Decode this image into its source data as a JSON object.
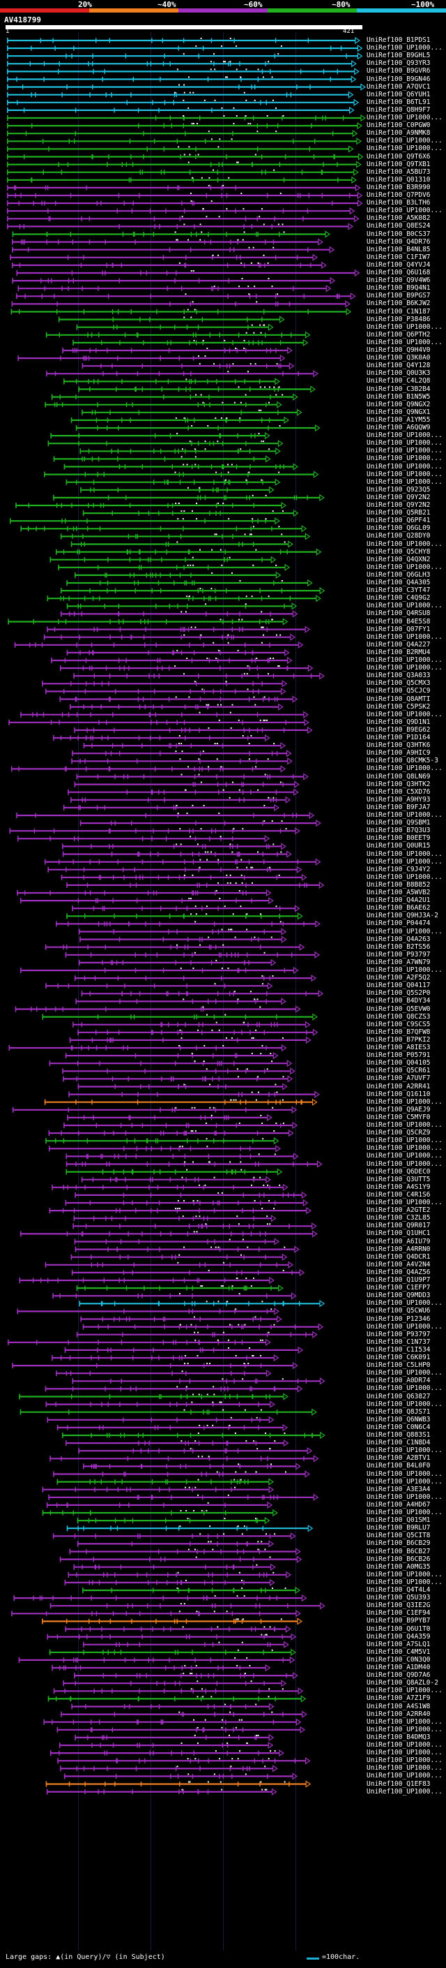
{
  "legend": {
    "labels": [
      "20%",
      "~40%",
      "~60%",
      "~80%",
      "~100%"
    ],
    "colors": [
      "#e02020",
      "#f08020",
      "#a030c0",
      "#20b020",
      "#20c0e0"
    ]
  },
  "query": {
    "title": "AV418799",
    "start": "1",
    "end": "421"
  },
  "hits": [
    {
      "label": "UniRef100_B1PDS1",
      "color": "#20c0e0"
    },
    {
      "label": "UniRef100_UP1000...",
      "color": "#20c0e0"
    },
    {
      "label": "UniRef100_B9GHL5",
      "color": "#20c0e0"
    },
    {
      "label": "UniRef100_Q93YR3",
      "color": "#20c0e0"
    },
    {
      "label": "UniRef100_B9GVR6",
      "color": "#20c0e0"
    },
    {
      "label": "UniRef100_B9GN46",
      "color": "#20c0e0"
    },
    {
      "label": "UniRef100_A7QVC1",
      "color": "#20c0e0"
    },
    {
      "label": "UniRef100_Q6YUH1",
      "color": "#20c0e0"
    },
    {
      "label": "UniRef100_B6TL91",
      "color": "#20c0e0"
    },
    {
      "label": "UniRef100_Q8H9F7",
      "color": "#20c0e0"
    },
    {
      "label": "UniRef100_UP1000...",
      "color": "#20b020"
    },
    {
      "label": "UniRef100_C0PGW0",
      "color": "#20b020"
    },
    {
      "label": "UniRef100_A9NMK8",
      "color": "#20b020"
    },
    {
      "label": "UniRef100_UP1000...",
      "color": "#20b020"
    },
    {
      "label": "UniRef100_UP1000...",
      "color": "#20b020"
    },
    {
      "label": "UniRef100_Q9T6X6",
      "color": "#20b020"
    },
    {
      "label": "UniRef100_Q9TXB1",
      "color": "#20b020"
    },
    {
      "label": "UniRef100_A5BU73",
      "color": "#20b020"
    },
    {
      "label": "UniRef100_Q01310",
      "color": "#20b020"
    },
    {
      "label": "UniRef100_B3R990",
      "color": "#a030c0"
    },
    {
      "label": "UniRef100_Q7PDV6",
      "color": "#a030c0"
    },
    {
      "label": "UniRef100_B3LTH6",
      "color": "#a030c0"
    },
    {
      "label": "UniRef100_UP1000...",
      "color": "#a030c0"
    },
    {
      "label": "UniRef100_A5K082",
      "color": "#a030c0"
    },
    {
      "label": "UniRef100_Q8ES24",
      "color": "#a030c0"
    },
    {
      "label": "UniRef100_B0CS37",
      "color": "#20b020"
    },
    {
      "label": "UniRef100_Q4DR76",
      "color": "#a030c0"
    },
    {
      "label": "UniRef100_B4NL85",
      "color": "#a030c0"
    },
    {
      "label": "UniRef100_C1FIW7",
      "color": "#a030c0"
    },
    {
      "label": "UniRef100_Q4YVJ4",
      "color": "#a030c0"
    },
    {
      "label": "UniRef100_Q6U168",
      "color": "#a030c0"
    },
    {
      "label": "UniRef100_Q9V4W6",
      "color": "#a030c0"
    },
    {
      "label": "UniRef100_B9Q4N1",
      "color": "#a030c0"
    },
    {
      "label": "UniRef100_B9PGS7",
      "color": "#a030c0"
    },
    {
      "label": "UniRef100_B6KJW2",
      "color": "#a030c0"
    },
    {
      "label": "UniRef100_C1N187",
      "color": "#20b020"
    },
    {
      "label": "UniRef100_P38486",
      "color": "#20b020"
    },
    {
      "label": "UniRef100_UP1000...",
      "color": "#20b020"
    },
    {
      "label": "UniRef100_Q6PTH2",
      "color": "#20b020"
    },
    {
      "label": "UniRef100_UP1000...",
      "color": "#20b020"
    },
    {
      "label": "UniRef100_Q9H4V0",
      "color": "#a030c0"
    },
    {
      "label": "UniRef100_Q3K0A0",
      "color": "#a030c0"
    },
    {
      "label": "UniRef100_Q4Y128",
      "color": "#a030c0"
    },
    {
      "label": "UniRef100_Q0U3K3",
      "color": "#a030c0"
    },
    {
      "label": "UniRef100_C4L2Q8",
      "color": "#20b020"
    },
    {
      "label": "UniRef100_C3B2B4",
      "color": "#20b020"
    },
    {
      "label": "UniRef100_B1N5W5",
      "color": "#20b020"
    },
    {
      "label": "UniRef100_Q9NGX2",
      "color": "#20b020"
    },
    {
      "label": "UniRef100_Q9NGX1",
      "color": "#20b020"
    },
    {
      "label": "UniRef100_A1YM55",
      "color": "#20b020"
    },
    {
      "label": "UniRef100_A6QQW9",
      "color": "#20b020"
    },
    {
      "label": "UniRef100_UP1000...",
      "color": "#20b020"
    },
    {
      "label": "UniRef100_UP1000...",
      "color": "#20b020"
    },
    {
      "label": "UniRef100_UP1000...",
      "color": "#20b020"
    },
    {
      "label": "UniRef100_UP1000...",
      "color": "#20b020"
    },
    {
      "label": "UniRef100_UP1000...",
      "color": "#20b020"
    },
    {
      "label": "UniRef100_UP1000...",
      "color": "#20b020"
    },
    {
      "label": "UniRef100_UP1000...",
      "color": "#20b020"
    },
    {
      "label": "UniRef100_Q923Q5",
      "color": "#20b020"
    },
    {
      "label": "UniRef100_Q9Y2N2",
      "color": "#20b020"
    },
    {
      "label": "UniRef100_Q9Y2N2",
      "color": "#20b020"
    },
    {
      "label": "UniRef100_Q5RB21",
      "color": "#20b020"
    },
    {
      "label": "UniRef100_Q6PF41",
      "color": "#20b020"
    },
    {
      "label": "UniRef100_Q6GL09",
      "color": "#20b020"
    },
    {
      "label": "UniRef100_Q28DY0",
      "color": "#20b020"
    },
    {
      "label": "UniRef100_UP1000...",
      "color": "#20b020"
    },
    {
      "label": "UniRef100_Q5CHY8",
      "color": "#20b020"
    },
    {
      "label": "UniRef100_Q4QXN2",
      "color": "#20b020"
    },
    {
      "label": "UniRef100_UP1000...",
      "color": "#20b020"
    },
    {
      "label": "UniRef100_Q6GLH3",
      "color": "#20b020"
    },
    {
      "label": "UniRef100_Q4A305",
      "color": "#20b020"
    },
    {
      "label": "UniRef100_C3YT47",
      "color": "#20b020"
    },
    {
      "label": "UniRef100_C4Q9G2",
      "color": "#20b020"
    },
    {
      "label": "UniRef100_UP1000...",
      "color": "#20b020"
    },
    {
      "label": "UniRef100_Q4RSU8",
      "color": "#a030c0"
    },
    {
      "label": "UniRef100_B4E5S8",
      "color": "#20b020"
    },
    {
      "label": "UniRef100_Q07FY1",
      "color": "#a030c0"
    },
    {
      "label": "UniRef100_UP1000...",
      "color": "#a030c0"
    },
    {
      "label": "UniRef100_Q4A227",
      "color": "#a030c0"
    },
    {
      "label": "UniRef100_B2RMU4",
      "color": "#a030c0"
    },
    {
      "label": "UniRef100_UP1000...",
      "color": "#a030c0"
    },
    {
      "label": "UniRef100_UP1000...",
      "color": "#a030c0"
    },
    {
      "label": "UniRef100_Q3A033",
      "color": "#a030c0"
    },
    {
      "label": "UniRef100_Q5CMX3",
      "color": "#a030c0"
    },
    {
      "label": "UniRef100_Q5CJC9",
      "color": "#a030c0"
    },
    {
      "label": "UniRef100_Q8AMTI",
      "color": "#a030c0"
    },
    {
      "label": "UniRef100_C5PSK2",
      "color": "#a030c0"
    },
    {
      "label": "UniRef100_UP1000...",
      "color": "#a030c0"
    },
    {
      "label": "UniRef100_Q9D1N1",
      "color": "#a030c0"
    },
    {
      "label": "UniRef100_B9EG62",
      "color": "#a030c0"
    },
    {
      "label": "UniRef100_P1D164",
      "color": "#a030c0"
    },
    {
      "label": "UniRef100_Q3HTK6",
      "color": "#a030c0"
    },
    {
      "label": "UniRef100_A9HIC9",
      "color": "#a030c0"
    },
    {
      "label": "UniRef100_Q8CMK5-3",
      "color": "#a030c0"
    },
    {
      "label": "UniRef100_UP1000...",
      "color": "#a030c0"
    },
    {
      "label": "UniRef100_Q8LN69",
      "color": "#a030c0"
    },
    {
      "label": "UniRef100_Q3HTK2",
      "color": "#a030c0"
    },
    {
      "label": "UniRef100_C5XD76",
      "color": "#a030c0"
    },
    {
      "label": "UniRef100_A9HY93",
      "color": "#a030c0"
    },
    {
      "label": "UniRef100_B9FJA7",
      "color": "#a030c0"
    },
    {
      "label": "UniRef100_UP1000...",
      "color": "#a030c0"
    },
    {
      "label": "UniRef100_Q9SBM1",
      "color": "#a030c0"
    },
    {
      "label": "UniRef100_B7Q3U3",
      "color": "#a030c0"
    },
    {
      "label": "UniRef100_B0EET9",
      "color": "#a030c0"
    },
    {
      "label": "UniRef100_Q0UR15",
      "color": "#a030c0"
    },
    {
      "label": "UniRef100_UP1000...",
      "color": "#a030c0"
    },
    {
      "label": "UniRef100_UP1000...",
      "color": "#a030c0"
    },
    {
      "label": "UniRef100_C9J4Y2",
      "color": "#a030c0"
    },
    {
      "label": "UniRef100_UP1000...",
      "color": "#a030c0"
    },
    {
      "label": "UniRef100_B8B852",
      "color": "#a030c0"
    },
    {
      "label": "UniRef100_A5WVB2",
      "color": "#a030c0"
    },
    {
      "label": "UniRef100_Q4A2U1",
      "color": "#a030c0"
    },
    {
      "label": "UniRef100_B6AE62",
      "color": "#a030c0"
    },
    {
      "label": "UniRef100_Q9HJ3A-2",
      "color": "#20b020"
    },
    {
      "label": "UniRef100_P04474",
      "color": "#a030c0"
    },
    {
      "label": "UniRef100_UP1000...",
      "color": "#a030c0"
    },
    {
      "label": "UniRef100_Q4A263",
      "color": "#a030c0"
    },
    {
      "label": "UniRef100_B2TS56",
      "color": "#a030c0"
    },
    {
      "label": "UniRef100_P93797",
      "color": "#a030c0"
    },
    {
      "label": "UniRef100_A7WN79",
      "color": "#a030c0"
    },
    {
      "label": "UniRef100_UP1000...",
      "color": "#a030c0"
    },
    {
      "label": "UniRef100_A2F5Q2",
      "color": "#a030c0"
    },
    {
      "label": "UniRef100_Q04117",
      "color": "#a030c0"
    },
    {
      "label": "UniRef100_Q5S2P0",
      "color": "#a030c0"
    },
    {
      "label": "UniRef100_B4DY34",
      "color": "#a030c0"
    },
    {
      "label": "UniRef100_Q5EVW0",
      "color": "#a030c0"
    },
    {
      "label": "UniRef100_Q8CZS3",
      "color": "#20b020"
    },
    {
      "label": "UniRef100_C9SCS5",
      "color": "#a030c0"
    },
    {
      "label": "UniRef100_B7QFW8",
      "color": "#a030c0"
    },
    {
      "label": "UniRef100_B7PKI2",
      "color": "#a030c0"
    },
    {
      "label": "UniRef100_A8IES3",
      "color": "#a030c0"
    },
    {
      "label": "UniRef100_P05791",
      "color": "#a030c0"
    },
    {
      "label": "UniRef100_Q04105",
      "color": "#a030c0"
    },
    {
      "label": "UniRef100_Q5CR61",
      "color": "#a030c0"
    },
    {
      "label": "UniRef100_A7UVF7",
      "color": "#a030c0"
    },
    {
      "label": "UniRef100_A2RR41",
      "color": "#a030c0"
    },
    {
      "label": "UniRef100_Q16110",
      "color": "#a030c0"
    },
    {
      "label": "UniRef100_UP1000...",
      "color": "#f08020"
    },
    {
      "label": "UniRef100_Q9AEJ9",
      "color": "#a030c0"
    },
    {
      "label": "UniRef100_C5MYF0",
      "color": "#a030c0"
    },
    {
      "label": "UniRef100_UP1000...",
      "color": "#a030c0"
    },
    {
      "label": "UniRef100_Q5CRZ9",
      "color": "#a030c0"
    },
    {
      "label": "UniRef100_UP1000...",
      "color": "#20b020"
    },
    {
      "label": "UniRef100_UP1000...",
      "color": "#a030c0"
    },
    {
      "label": "UniRef100_UP1000...",
      "color": "#a030c0"
    },
    {
      "label": "UniRef100_UP1000...",
      "color": "#a030c0"
    },
    {
      "label": "UniRef100_Q6DEC0",
      "color": "#20b020"
    },
    {
      "label": "UniRef100_Q3UTT5",
      "color": "#a030c0"
    },
    {
      "label": "UniRef100_A4S1Y9",
      "color": "#a030c0"
    },
    {
      "label": "UniRef100_C4R1S6",
      "color": "#a030c0"
    },
    {
      "label": "UniRef100_UP1000...",
      "color": "#a030c0"
    },
    {
      "label": "UniRef100_A2GTE2",
      "color": "#a030c0"
    },
    {
      "label": "UniRef100_C3ZL85",
      "color": "#a030c0"
    },
    {
      "label": "UniRef100_Q9R017",
      "color": "#a030c0"
    },
    {
      "label": "UniRef100_Q1UHC1",
      "color": "#a030c0"
    },
    {
      "label": "UniRef100_A6IU79",
      "color": "#a030c0"
    },
    {
      "label": "UniRef100_A4RRN0",
      "color": "#a030c0"
    },
    {
      "label": "UniRef100_Q4DCR1",
      "color": "#a030c0"
    },
    {
      "label": "UniRef100_A4V2N4",
      "color": "#a030c0"
    },
    {
      "label": "UniRef100_Q4AZ56",
      "color": "#a030c0"
    },
    {
      "label": "UniRef100_Q1U9P7",
      "color": "#a030c0"
    },
    {
      "label": "UniRef100_C1EFP7",
      "color": "#20b020"
    },
    {
      "label": "UniRef100_Q9MDD3",
      "color": "#a030c0"
    },
    {
      "label": "UniRef100_UP1000...",
      "color": "#20c0e0"
    },
    {
      "label": "UniRef100_Q5CWU6",
      "color": "#a030c0"
    },
    {
      "label": "UniRef100_P12346",
      "color": "#a030c0"
    },
    {
      "label": "UniRef100_UP1000...",
      "color": "#a030c0"
    },
    {
      "label": "UniRef100_P93797",
      "color": "#a030c0"
    },
    {
      "label": "UniRef100_C1N737",
      "color": "#a030c0"
    },
    {
      "label": "UniRef100_C1I534",
      "color": "#a030c0"
    },
    {
      "label": "UniRef100_C6K091",
      "color": "#a030c0"
    },
    {
      "label": "UniRef100_C5LHP0",
      "color": "#a030c0"
    },
    {
      "label": "UniRef100_UP1000...",
      "color": "#a030c0"
    },
    {
      "label": "UniRef100_A0DR74",
      "color": "#a030c0"
    },
    {
      "label": "UniRef100_UP1000...",
      "color": "#a030c0"
    },
    {
      "label": "UniRef100_Q63827",
      "color": "#20b020"
    },
    {
      "label": "UniRef100_UP1000...",
      "color": "#a030c0"
    },
    {
      "label": "UniRef100_Q8JS71",
      "color": "#20b020"
    },
    {
      "label": "UniRef100_Q6NWB3",
      "color": "#a030c0"
    },
    {
      "label": "UniRef100_C0N6C4",
      "color": "#a030c0"
    },
    {
      "label": "UniRef100_Q883S1",
      "color": "#20b020"
    },
    {
      "label": "UniRef100_C1N8D4",
      "color": "#a030c0"
    },
    {
      "label": "UniRef100_UP1000...",
      "color": "#a030c0"
    },
    {
      "label": "UniRef100_A2BTV1",
      "color": "#a030c0"
    },
    {
      "label": "UniRef100_B4L0F0",
      "color": "#a030c0"
    },
    {
      "label": "UniRef100_UP1000...",
      "color": "#a030c0"
    },
    {
      "label": "UniRef100_UP1000...",
      "color": "#20b020"
    },
    {
      "label": "UniRef100_A3E3A4",
      "color": "#a030c0"
    },
    {
      "label": "UniRef100_UP1000...",
      "color": "#a030c0"
    },
    {
      "label": "UniRef100_A4HD67",
      "color": "#a030c0"
    },
    {
      "label": "UniRef100_UP1000...",
      "color": "#20b020"
    },
    {
      "label": "UniRef100_Q01SM1",
      "color": "#20b020"
    },
    {
      "label": "UniRef100_B9RLU7",
      "color": "#20c0e0"
    },
    {
      "label": "UniRef100_Q5CIT8",
      "color": "#a030c0"
    },
    {
      "label": "UniRef100_B6CB29",
      "color": "#a030c0"
    },
    {
      "label": "UniRef100_B6CB27",
      "color": "#a030c0"
    },
    {
      "label": "UniRef100_B6CB26",
      "color": "#a030c0"
    },
    {
      "label": "UniRef100_A0MG35",
      "color": "#a030c0"
    },
    {
      "label": "UniRef100_UP1000...",
      "color": "#a030c0"
    },
    {
      "label": "UniRef100_UP1000...",
      "color": "#a030c0"
    },
    {
      "label": "UniRef100_Q4T4L4",
      "color": "#20b020"
    },
    {
      "label": "UniRef100_Q5U393",
      "color": "#a030c0"
    },
    {
      "label": "UniRef100_Q3IE2G",
      "color": "#a030c0"
    },
    {
      "label": "UniRef100_C1EF94",
      "color": "#a030c0"
    },
    {
      "label": "UniRef100_B9PYB7",
      "color": "#f08020"
    },
    {
      "label": "UniRef100_Q6U1T0",
      "color": "#a030c0"
    },
    {
      "label": "UniRef100_Q4A359",
      "color": "#a030c0"
    },
    {
      "label": "UniRef100_A7SLQ1",
      "color": "#a030c0"
    },
    {
      "label": "UniRef100_C4M5V1",
      "color": "#20b020"
    },
    {
      "label": "UniRef100_C0N3Q0",
      "color": "#a030c0"
    },
    {
      "label": "UniRef100_A1DM40",
      "color": "#a030c0"
    },
    {
      "label": "UniRef100_Q9D7A6",
      "color": "#a030c0"
    },
    {
      "label": "UniRef100_Q8AZL0-2",
      "color": "#a030c0"
    },
    {
      "label": "UniRef100_UP1000...",
      "color": "#a030c0"
    },
    {
      "label": "UniRef100_A7Z1F9",
      "color": "#20b020"
    },
    {
      "label": "UniRef100_A4S1W8",
      "color": "#a030c0"
    },
    {
      "label": "UniRef100_A2RR40",
      "color": "#a030c0"
    },
    {
      "label": "UniRef100_UP1000...",
      "color": "#a030c0"
    },
    {
      "label": "UniRef100_UP1000...",
      "color": "#a030c0"
    },
    {
      "label": "UniRef100_B4DMQ3",
      "color": "#a030c0"
    },
    {
      "label": "UniRef100_UP1000...",
      "color": "#a030c0"
    },
    {
      "label": "UniRef100_UP1000...",
      "color": "#a030c0"
    },
    {
      "label": "UniRef100_UP1000...",
      "color": "#a030c0"
    },
    {
      "label": "UniRef100_UP1000...",
      "color": "#a030c0"
    },
    {
      "label": "UniRef100_UP1000...",
      "color": "#a030c0"
    },
    {
      "label": "UniRef100_Q1EF83",
      "color": "#f08020"
    },
    {
      "label": "UniRef100_UP1000...",
      "color": "#a030c0"
    }
  ],
  "footer": {
    "text": "Large gaps: ▲(in Query)/▽ (in Subject)",
    "scale_label": "=100char."
  }
}
